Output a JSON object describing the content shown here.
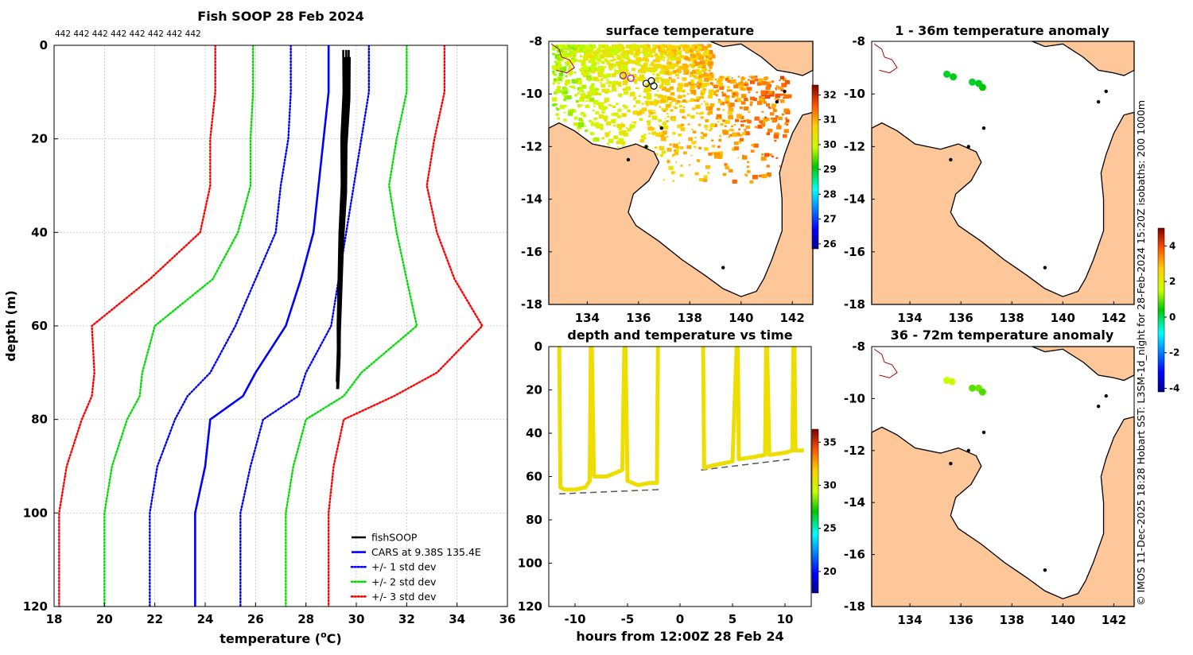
{
  "profile": {
    "title": "Fish SOOP 28 Feb 2024",
    "xlabel": "temperature (",
    "xlabel_unit_sup": "o",
    "xlabel_unit": "C)",
    "ylabel": "depth (m)",
    "top_counts": [
      "442",
      "442",
      "442",
      "442",
      "442",
      "442",
      "442",
      "442"
    ],
    "legend": [
      {
        "label": "fishSOOP",
        "color": "#000000",
        "style": "solid"
      },
      {
        "label": "CARS at 9.38S 135.4E",
        "color": "#0000ff",
        "style": "solid"
      },
      {
        "label": "+/- 1 std dev",
        "color": "#0000ff",
        "style": "dotted"
      },
      {
        "label": "+/- 2 std dev",
        "color": "#00dd00",
        "style": "dotted"
      },
      {
        "label": "+/- 3 std dev",
        "color": "#ff0000",
        "style": "dotted"
      }
    ]
  },
  "surface": {
    "title": "surface temperature",
    "colorbar_ticks": [
      "26",
      "27",
      "28",
      "29",
      "30",
      "31",
      "32"
    ]
  },
  "timeseries": {
    "title": "depth and temperature vs time",
    "xlabel": "hours from 12:00Z 28 Feb 24",
    "colorbar_ticks": [
      "20",
      "25",
      "30",
      "35"
    ]
  },
  "anom1": {
    "title": "1 - 36m temperature anomaly"
  },
  "anom2": {
    "title": "36 - 72m temperature anomaly"
  },
  "anom_colorbar_ticks": [
    "-4",
    "-2",
    "0",
    "2",
    "4"
  ],
  "map_axes": {
    "lon_ticks": [
      "134",
      "136",
      "138",
      "140",
      "142"
    ],
    "lat_ticks": [
      "-8",
      "-10",
      "-12",
      "-14",
      "-16",
      "-18"
    ]
  },
  "credit": "© IMOS 11-Dec-2025 18:28 Hobart SST: L3SM-1d_night for 28-Feb-2024 15:20Z isobaths: 200  1000m",
  "chart_data": [
    {
      "type": "line",
      "title": "Fish SOOP 28 Feb 2024",
      "xlabel": "temperature (oC)",
      "ylabel": "depth (m)",
      "xlim": [
        18,
        36
      ],
      "ylim": [
        120,
        0
      ],
      "xticks": [
        18,
        20,
        22,
        24,
        26,
        28,
        30,
        32,
        34,
        36
      ],
      "yticks": [
        0,
        20,
        40,
        60,
        80,
        100,
        120
      ],
      "depth": [
        0,
        10,
        20,
        30,
        40,
        50,
        60,
        70,
        75,
        80,
        90,
        100,
        120
      ],
      "series": [
        {
          "name": "CARS at 9.38S 135.4E",
          "style": "solid",
          "color": "#0000ff",
          "values": [
            28.9,
            28.9,
            28.7,
            28.5,
            28.3,
            27.8,
            27.2,
            26.0,
            25.5,
            24.2,
            24.0,
            23.6,
            23.6
          ]
        },
        {
          "name": "+1 std dev",
          "style": "dotted",
          "color": "#0000ff",
          "values": [
            30.5,
            30.5,
            30.2,
            29.9,
            29.6,
            29.3,
            29.0,
            28.0,
            27.7,
            26.3,
            25.8,
            25.4,
            25.4
          ]
        },
        {
          "name": "-1 std dev",
          "style": "dotted",
          "color": "#0000ff",
          "values": [
            27.4,
            27.4,
            27.3,
            27.0,
            26.8,
            26.0,
            25.2,
            24.2,
            23.3,
            22.8,
            22.1,
            21.8,
            21.8
          ]
        },
        {
          "name": "+2 std dev",
          "style": "dotted",
          "color": "#00dd00",
          "values": [
            32.0,
            32.0,
            31.6,
            31.3,
            31.6,
            32.0,
            32.4,
            30.2,
            29.5,
            28.0,
            27.5,
            27.2,
            27.2
          ]
        },
        {
          "name": "-2 std dev",
          "style": "dotted",
          "color": "#00dd00",
          "values": [
            25.9,
            25.9,
            25.8,
            25.8,
            25.3,
            24.3,
            22.0,
            21.5,
            21.4,
            20.9,
            20.3,
            20.0,
            20.0
          ]
        },
        {
          "name": "+3 std dev",
          "style": "dotted",
          "color": "#ff0000",
          "values": [
            33.5,
            33.5,
            33.1,
            32.8,
            33.2,
            33.9,
            35.0,
            33.2,
            31.5,
            29.5,
            29.1,
            28.9,
            28.9
          ]
        },
        {
          "name": "-3 std dev",
          "style": "dotted",
          "color": "#ff0000",
          "values": [
            24.4,
            24.4,
            24.2,
            24.2,
            23.8,
            21.8,
            19.5,
            19.6,
            19.5,
            19.1,
            18.5,
            18.2,
            18.2
          ]
        }
      ],
      "fishsoop": {
        "name": "fishSOOP",
        "depth": [
          1,
          10,
          20,
          30,
          40,
          50,
          60,
          65,
          72
        ],
        "temp": [
          29.6,
          29.6,
          29.5,
          29.5,
          29.4,
          29.35,
          29.3,
          29.3,
          29.25
        ]
      }
    },
    {
      "type": "scatter",
      "title": "depth and temperature vs time",
      "xlabel": "hours from 12:00Z 28 Feb 24",
      "xlim": [
        -12.5,
        12.5
      ],
      "ylim": [
        120,
        0
      ],
      "xticks": [
        -10,
        -5,
        0,
        5,
        10
      ],
      "yticks": [
        0,
        20,
        40,
        60,
        80,
        100,
        120
      ],
      "bottom_depth": [
        {
          "x": [
            -11.5,
            -2
          ],
          "depth": [
            68,
            66
          ]
        },
        {
          "x": [
            2,
            10.5
          ],
          "depth": [
            57,
            52
          ]
        }
      ],
      "dives": [
        {
          "t": [
            -11.5,
            -11.4,
            -11,
            -10,
            -9,
            -8.6,
            -8.5
          ],
          "depth": [
            0,
            65,
            66,
            66,
            65,
            62,
            0
          ]
        },
        {
          "t": [
            -8.4,
            -8.2,
            -7,
            -6,
            -5.5,
            -5.3
          ],
          "depth": [
            0,
            60,
            60,
            58,
            57,
            0
          ]
        },
        {
          "t": [
            -5.2,
            -5,
            -4,
            -3,
            -2.2,
            -2.1
          ],
          "depth": [
            0,
            62,
            64,
            63,
            63,
            0
          ]
        },
        {
          "t": [
            2.2,
            2.3,
            3,
            4,
            5,
            5.4
          ],
          "depth": [
            0,
            56,
            55,
            54,
            53,
            0
          ]
        },
        {
          "t": [
            5.5,
            5.6,
            7,
            8.1,
            8.2
          ],
          "depth": [
            0,
            52,
            51,
            50,
            0
          ]
        },
        {
          "t": [
            8.3,
            8.5,
            10,
            10.7,
            10.8
          ],
          "depth": [
            0,
            50,
            49,
            48,
            0
          ]
        },
        {
          "t": [
            10.9,
            11,
            11.8
          ],
          "depth": [
            0,
            48,
            48
          ]
        }
      ],
      "temperature": 31
    },
    {
      "type": "heatmap",
      "title": "surface temperature",
      "xlim": [
        132.5,
        142.8
      ],
      "ylim": [
        -18,
        -8
      ],
      "colorbar_range": [
        25.8,
        32.4
      ],
      "tracks": [
        {
          "lon": [
            135.4,
            135.7,
            136.3,
            136.5,
            136.6
          ],
          "lat": [
            -9.3,
            -9.4,
            -9.6,
            -9.5,
            -9.7
          ]
        }
      ]
    },
    {
      "type": "scatter",
      "title": "1 - 36m temperature anomaly",
      "colorbar_range": [
        -4.2,
        5.0
      ],
      "points": [
        {
          "lon": 135.45,
          "lat": -9.25,
          "anom": 0.2
        },
        {
          "lon": 135.7,
          "lat": -9.35,
          "anom": 0.3
        },
        {
          "lon": 136.45,
          "lat": -9.55,
          "anom": 0.2
        },
        {
          "lon": 136.7,
          "lat": -9.6,
          "anom": 0.3
        },
        {
          "lon": 136.85,
          "lat": -9.75,
          "anom": 0.4
        }
      ]
    },
    {
      "type": "scatter",
      "title": "36 - 72m temperature anomaly",
      "colorbar_range": [
        -4.2,
        5.0
      ],
      "points": [
        {
          "lon": 135.45,
          "lat": -9.3,
          "anom": 1.5
        },
        {
          "lon": 135.65,
          "lat": -9.35,
          "anom": 1.6
        },
        {
          "lon": 136.45,
          "lat": -9.6,
          "anom": 0.9
        },
        {
          "lon": 136.7,
          "lat": -9.6,
          "anom": 1.0
        },
        {
          "lon": 136.85,
          "lat": -9.75,
          "anom": 0.8
        }
      ]
    }
  ]
}
